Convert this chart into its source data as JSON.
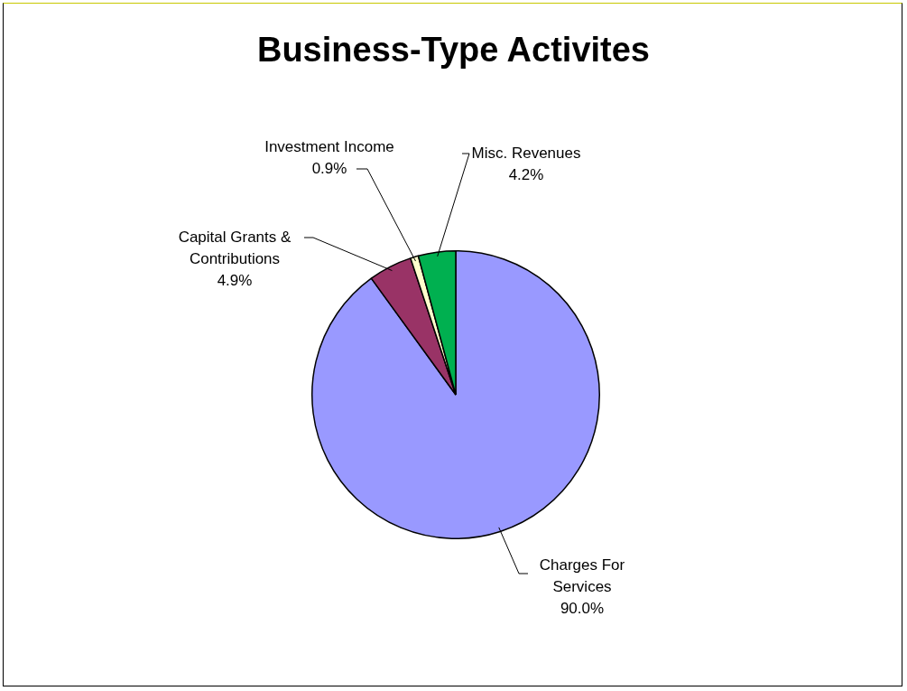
{
  "chart_data": {
    "type": "pie",
    "title": "Business-Type Activites",
    "categories": [
      "Charges For Services",
      "Capital Grants & Contributions",
      "Investment Income",
      "Misc. Revenues"
    ],
    "values": [
      90.0,
      4.9,
      0.9,
      4.2
    ],
    "value_labels": [
      "90.0%",
      "4.9%",
      "0.9%",
      "4.2%"
    ],
    "colors": [
      "#9999ff",
      "#993366",
      "#ffffcc",
      "#00b050"
    ],
    "legend": false
  }
}
